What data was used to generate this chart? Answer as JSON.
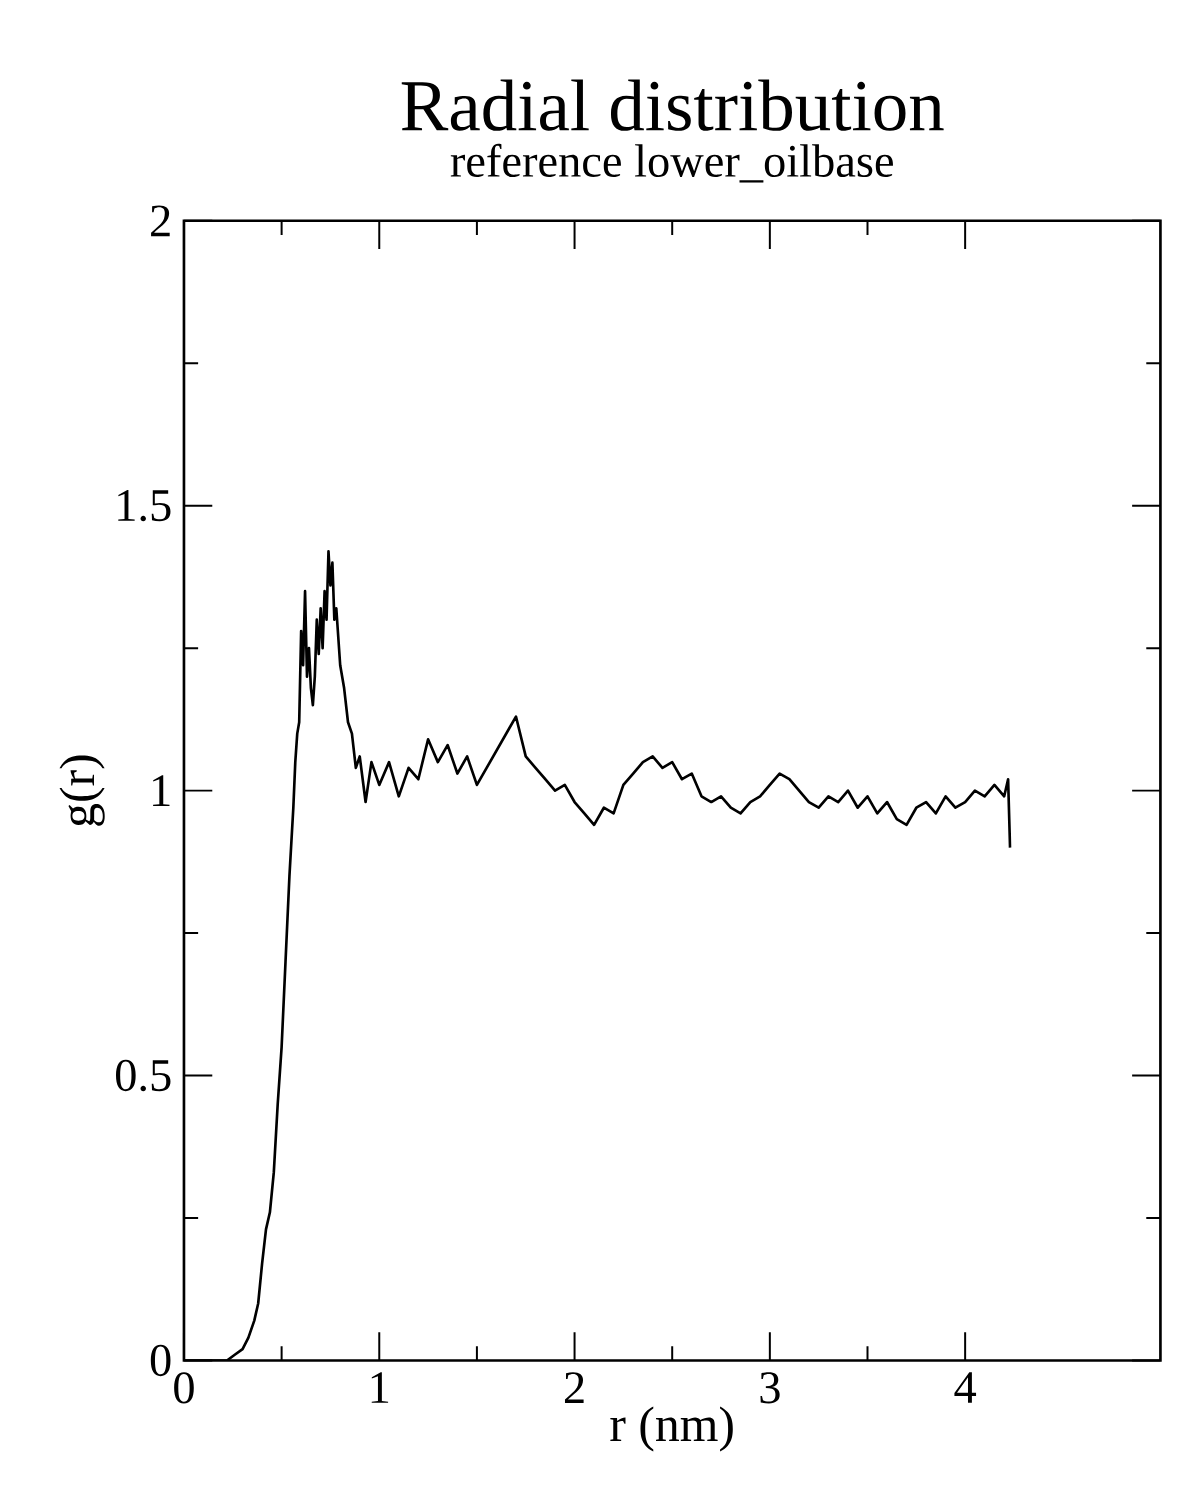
{
  "chart_data": {
    "type": "line",
    "title": "Radial distribution",
    "subtitle": "reference lower_oilbase",
    "xlabel": "r (nm)",
    "ylabel": "g(r)",
    "xlim": [
      0,
      5
    ],
    "ylim": [
      0,
      2
    ],
    "xticks": [
      0,
      1,
      2,
      3,
      4
    ],
    "yticks": [
      0,
      0.5,
      1,
      1.5,
      2
    ],
    "marker": "none",
    "line_style": "solid",
    "series": [
      {
        "color": "#000000",
        "x": [
          0.0,
          0.15,
          0.22,
          0.26,
          0.3,
          0.33,
          0.36,
          0.38,
          0.4,
          0.42,
          0.44,
          0.46,
          0.48,
          0.5,
          0.52,
          0.54,
          0.56,
          0.57,
          0.58,
          0.59,
          0.6,
          0.61,
          0.62,
          0.63,
          0.64,
          0.65,
          0.66,
          0.67,
          0.68,
          0.69,
          0.7,
          0.71,
          0.72,
          0.73,
          0.74,
          0.75,
          0.76,
          0.77,
          0.78,
          0.8,
          0.82,
          0.84,
          0.86,
          0.88,
          0.9,
          0.93,
          0.96,
          1.0,
          1.05,
          1.1,
          1.15,
          1.2,
          1.25,
          1.3,
          1.35,
          1.4,
          1.45,
          1.5,
          1.55,
          1.6,
          1.65,
          1.7,
          1.75,
          1.8,
          1.85,
          1.9,
          1.95,
          2.0,
          2.05,
          2.1,
          2.15,
          2.2,
          2.25,
          2.3,
          2.35,
          2.4,
          2.45,
          2.5,
          2.55,
          2.6,
          2.65,
          2.7,
          2.75,
          2.8,
          2.85,
          2.9,
          2.95,
          3.0,
          3.05,
          3.1,
          3.15,
          3.2,
          3.25,
          3.3,
          3.35,
          3.4,
          3.45,
          3.5,
          3.55,
          3.6,
          3.65,
          3.7,
          3.75,
          3.8,
          3.85,
          3.9,
          3.95,
          4.0,
          4.05,
          4.1,
          4.15,
          4.2,
          4.22,
          4.23
        ],
        "values": [
          0.0,
          0.0,
          0.0,
          0.01,
          0.02,
          0.04,
          0.07,
          0.1,
          0.17,
          0.23,
          0.26,
          0.33,
          0.45,
          0.55,
          0.7,
          0.85,
          0.97,
          1.05,
          1.1,
          1.12,
          1.28,
          1.22,
          1.35,
          1.2,
          1.25,
          1.18,
          1.15,
          1.2,
          1.3,
          1.24,
          1.32,
          1.25,
          1.35,
          1.3,
          1.42,
          1.36,
          1.4,
          1.3,
          1.32,
          1.22,
          1.18,
          1.12,
          1.1,
          1.04,
          1.06,
          0.98,
          1.05,
          1.01,
          1.05,
          0.99,
          1.04,
          1.02,
          1.09,
          1.05,
          1.08,
          1.03,
          1.06,
          1.01,
          1.04,
          1.07,
          1.1,
          1.13,
          1.06,
          1.04,
          1.02,
          1.0,
          1.01,
          0.98,
          0.96,
          0.94,
          0.97,
          0.96,
          1.01,
          1.03,
          1.05,
          1.06,
          1.04,
          1.05,
          1.02,
          1.03,
          0.99,
          0.98,
          0.99,
          0.97,
          0.96,
          0.98,
          0.99,
          1.01,
          1.03,
          1.02,
          1.0,
          0.98,
          0.97,
          0.99,
          0.98,
          1.0,
          0.97,
          0.99,
          0.96,
          0.98,
          0.95,
          0.94,
          0.97,
          0.98,
          0.96,
          0.99,
          0.97,
          0.98,
          1.0,
          0.99,
          1.01,
          0.99,
          1.02,
          0.9
        ]
      }
    ]
  }
}
